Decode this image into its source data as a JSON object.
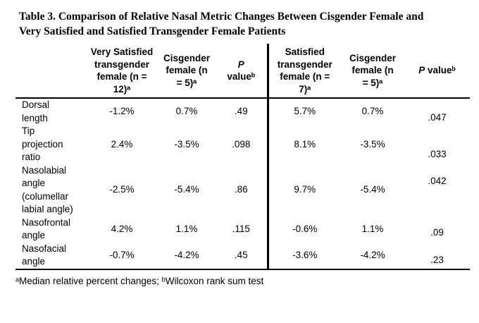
{
  "title": {
    "line1": "Table 3. Comparison of Relative Nasal Metric Changes Between Cisgender Female and",
    "line2": "Very Satisfied and Satisfied Transgender Female Patients"
  },
  "table": {
    "columns": {
      "metric": "",
      "very_satisfied_tf": "Very Satisfied transgender female (n = 12)ᵃ",
      "cisgender_left": "Cisgender female (n = 5)ᵃ",
      "p_left_italic": "P",
      "p_left_rest": " valueᵇ",
      "satisfied_tf": "Satisfied transgender female (n = 7)ᵃ",
      "cisgender_right": "Cisgender female (n = 5)ᵃ",
      "p_right_italic": "P",
      "p_right_rest": " valueᵇ"
    },
    "rows": [
      {
        "metric": "Dorsal length",
        "very_satisfied": "-1.2%",
        "cisgender_left": "0.7%",
        "p_left": ".49",
        "satisfied": "5.7%",
        "cisgender_right": "0.7%",
        "p_right": ".047"
      },
      {
        "metric": "Tip projection ratio",
        "very_satisfied": "2.4%",
        "cisgender_left": "-3.5%",
        "p_left": ".098",
        "satisfied": "8.1%",
        "cisgender_right": "-3.5%",
        "p_right": ".033"
      },
      {
        "metric": "Nasolabial angle (columellar labial angle)",
        "very_satisfied": "-2.5%",
        "cisgender_left": "-5.4%",
        "p_left": ".86",
        "satisfied": "9.7%",
        "cisgender_right": "-5.4%",
        "p_right": ".042"
      },
      {
        "metric": "Nasofrontal angle",
        "very_satisfied": "4.2%",
        "cisgender_left": "1.1%",
        "p_left": ".115",
        "satisfied": "-0.6%",
        "cisgender_right": "1.1%",
        "p_right": ".09"
      },
      {
        "metric": "Nasofacial angle",
        "very_satisfied": "-0.7%",
        "cisgender_left": "-4.2%",
        "p_left": ".45",
        "satisfied": "-3.6%",
        "cisgender_right": "-4.2%",
        "p_right": ".23"
      }
    ]
  },
  "footnote": "ᵃMedian relative percent changes; ᵇWilcoxon rank sum test",
  "colors": {
    "text": "#000000",
    "background": "#ffffff",
    "rule": "#000000"
  }
}
